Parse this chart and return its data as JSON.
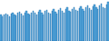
{
  "values": [
    72,
    68,
    74,
    76,
    73,
    69,
    75,
    78,
    74,
    70,
    77,
    80,
    75,
    71,
    78,
    82,
    76,
    72,
    79,
    83,
    77,
    73,
    80,
    85,
    78,
    74,
    82,
    86,
    79,
    75,
    83,
    88,
    80,
    76,
    85,
    90,
    82,
    78,
    87,
    92,
    84,
    80,
    89,
    94,
    86,
    82,
    91,
    96,
    88,
    84,
    93,
    98,
    90,
    86,
    95,
    101,
    92,
    88,
    97,
    104,
    94,
    91,
    100,
    108
  ],
  "bar_color": "#5baee0",
  "edge_color": "#1a6aad",
  "background_color": "#ffffff",
  "ylim_min": 63,
  "ylim_max": 113
}
